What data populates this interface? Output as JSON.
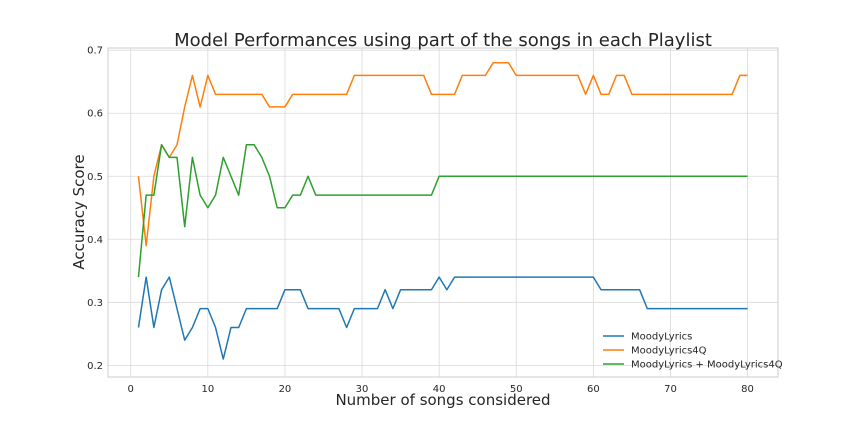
{
  "chart_data": {
    "type": "line",
    "title": "Model Performances using part of the songs in each Playlist",
    "xlabel": "Number of songs considered",
    "ylabel": "Accuracy Score",
    "xlim": [
      -2.95,
      83.95
    ],
    "ylim": [
      0.1815,
      0.7035
    ],
    "xticks": [
      0,
      10,
      20,
      30,
      40,
      50,
      60,
      70,
      80
    ],
    "yticks": [
      0.2,
      0.3,
      0.4,
      0.5,
      0.6,
      0.7
    ],
    "xtick_labels": [
      "0",
      "10",
      "20",
      "30",
      "40",
      "50",
      "60",
      "70",
      "80"
    ],
    "ytick_labels": [
      "0.2",
      "0.3",
      "0.4",
      "0.5",
      "0.6",
      "0.7"
    ],
    "grid": true,
    "legend_position": "lower-right",
    "x": [
      1,
      2,
      3,
      4,
      5,
      6,
      7,
      8,
      9,
      10,
      11,
      12,
      13,
      14,
      15,
      16,
      17,
      18,
      19,
      20,
      21,
      22,
      23,
      24,
      25,
      26,
      27,
      28,
      29,
      30,
      31,
      32,
      33,
      34,
      35,
      36,
      37,
      38,
      39,
      40,
      41,
      42,
      43,
      44,
      45,
      46,
      47,
      48,
      49,
      50,
      51,
      52,
      53,
      54,
      55,
      56,
      57,
      58,
      59,
      60,
      61,
      62,
      63,
      64,
      65,
      66,
      67,
      68,
      69,
      70,
      71,
      72,
      73,
      74,
      75,
      76,
      77,
      78,
      79,
      80
    ],
    "series": [
      {
        "name": "MoodyLyrics",
        "color": "#1f77b4",
        "values": [
          0.26,
          0.34,
          0.26,
          0.32,
          0.34,
          0.29,
          0.24,
          0.26,
          0.29,
          0.29,
          0.26,
          0.21,
          0.26,
          0.26,
          0.29,
          0.29,
          0.29,
          0.29,
          0.29,
          0.32,
          0.32,
          0.32,
          0.29,
          0.29,
          0.29,
          0.29,
          0.29,
          0.26,
          0.29,
          0.29,
          0.29,
          0.29,
          0.32,
          0.29,
          0.32,
          0.32,
          0.32,
          0.32,
          0.32,
          0.34,
          0.32,
          0.34,
          0.34,
          0.34,
          0.34,
          0.34,
          0.34,
          0.34,
          0.34,
          0.34,
          0.34,
          0.34,
          0.34,
          0.34,
          0.34,
          0.34,
          0.34,
          0.34,
          0.34,
          0.34,
          0.32,
          0.32,
          0.32,
          0.32,
          0.32,
          0.32,
          0.29,
          0.29,
          0.29,
          0.29,
          0.29,
          0.29,
          0.29,
          0.29,
          0.29,
          0.29,
          0.29,
          0.29,
          0.29,
          0.29
        ]
      },
      {
        "name": "MoodyLyrics4Q",
        "color": "#ff7f0e",
        "values": [
          0.5,
          0.39,
          0.5,
          0.55,
          0.53,
          0.55,
          0.61,
          0.66,
          0.61,
          0.66,
          0.63,
          0.63,
          0.63,
          0.63,
          0.63,
          0.63,
          0.63,
          0.61,
          0.61,
          0.61,
          0.63,
          0.63,
          0.63,
          0.63,
          0.63,
          0.63,
          0.63,
          0.63,
          0.66,
          0.66,
          0.66,
          0.66,
          0.66,
          0.66,
          0.66,
          0.66,
          0.66,
          0.66,
          0.63,
          0.63,
          0.63,
          0.63,
          0.66,
          0.66,
          0.66,
          0.66,
          0.68,
          0.68,
          0.68,
          0.66,
          0.66,
          0.66,
          0.66,
          0.66,
          0.66,
          0.66,
          0.66,
          0.66,
          0.63,
          0.66,
          0.63,
          0.63,
          0.66,
          0.66,
          0.63,
          0.63,
          0.63,
          0.63,
          0.63,
          0.63,
          0.63,
          0.63,
          0.63,
          0.63,
          0.63,
          0.63,
          0.63,
          0.63,
          0.66,
          0.66
        ]
      },
      {
        "name": "MoodyLyrics + MoodyLyrics4Q",
        "color": "#2ca02c",
        "values": [
          0.34,
          0.47,
          0.47,
          0.55,
          0.53,
          0.53,
          0.42,
          0.53,
          0.47,
          0.45,
          0.47,
          0.53,
          0.5,
          0.47,
          0.55,
          0.55,
          0.53,
          0.5,
          0.45,
          0.45,
          0.47,
          0.47,
          0.5,
          0.47,
          0.47,
          0.47,
          0.47,
          0.47,
          0.47,
          0.47,
          0.47,
          0.47,
          0.47,
          0.47,
          0.47,
          0.47,
          0.47,
          0.47,
          0.47,
          0.5,
          0.5,
          0.5,
          0.5,
          0.5,
          0.5,
          0.5,
          0.5,
          0.5,
          0.5,
          0.5,
          0.5,
          0.5,
          0.5,
          0.5,
          0.5,
          0.5,
          0.5,
          0.5,
          0.5,
          0.5,
          0.5,
          0.5,
          0.5,
          0.5,
          0.5,
          0.5,
          0.5,
          0.5,
          0.5,
          0.5,
          0.5,
          0.5,
          0.5,
          0.5,
          0.5,
          0.5,
          0.5,
          0.5,
          0.5,
          0.5
        ]
      }
    ]
  }
}
